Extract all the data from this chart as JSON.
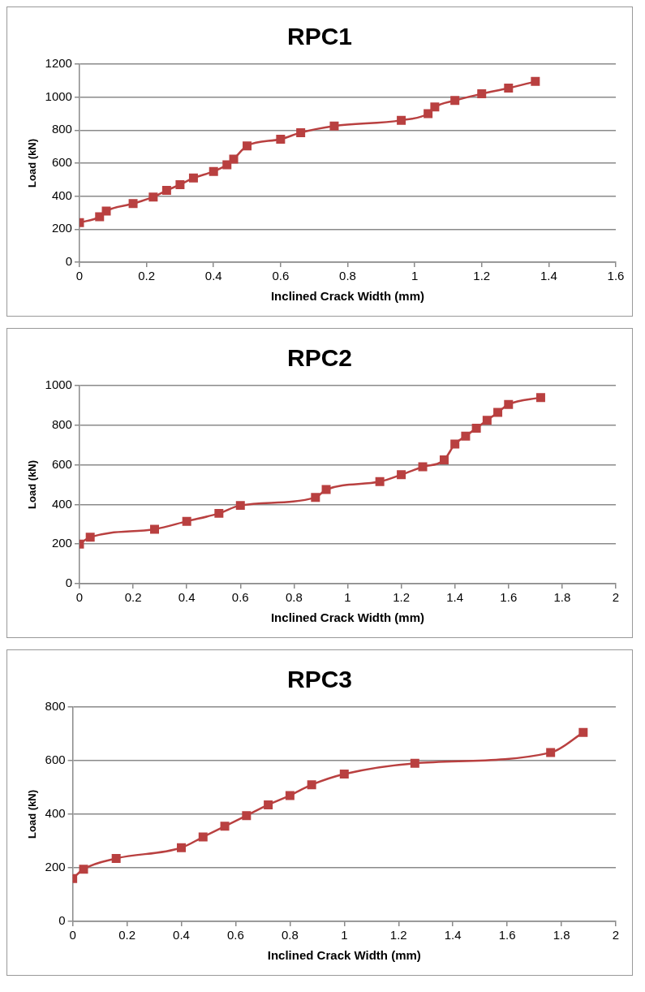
{
  "chart_data": [
    {
      "type": "line",
      "title": "RPC1",
      "xlabel": "Inclined Crack Width (mm)",
      "ylabel": "Load (kN)",
      "marker": "square",
      "grid": "y",
      "xlim": [
        0,
        1.6
      ],
      "xticks": [
        0,
        0.2,
        0.4,
        0.6,
        0.8,
        1,
        1.2,
        1.4,
        1.6
      ],
      "ylim": [
        0,
        1200
      ],
      "yticks": [
        0,
        200,
        400,
        600,
        800,
        1000,
        1200
      ],
      "series": [
        {
          "color": "#b94040",
          "x": [
            0,
            0.06,
            0.08,
            0.16,
            0.22,
            0.26,
            0.3,
            0.34,
            0.4,
            0.44,
            0.46,
            0.5,
            0.6,
            0.66,
            0.76,
            0.96,
            1.04,
            1.06,
            1.12,
            1.2,
            1.28,
            1.36
          ],
          "values": [
            240,
            275,
            310,
            355,
            395,
            435,
            470,
            510,
            550,
            590,
            625,
            705,
            745,
            785,
            825,
            860,
            900,
            940,
            980,
            1020,
            1055,
            1095
          ]
        }
      ]
    },
    {
      "type": "line",
      "title": "RPC2",
      "xlabel": "Inclined Crack Width (mm)",
      "ylabel": "Load (kN)",
      "marker": "square",
      "grid": "y",
      "xlim": [
        0,
        2
      ],
      "xticks": [
        0,
        0.2,
        0.4,
        0.6,
        0.8,
        1,
        1.2,
        1.4,
        1.6,
        1.8,
        2
      ],
      "ylim": [
        0,
        1000
      ],
      "yticks": [
        0,
        200,
        400,
        600,
        800,
        1000
      ],
      "series": [
        {
          "color": "#b94040",
          "x": [
            0,
            0.04,
            0.28,
            0.4,
            0.52,
            0.6,
            0.88,
            0.92,
            1.12,
            1.2,
            1.28,
            1.36,
            1.4,
            1.44,
            1.48,
            1.52,
            1.56,
            1.6,
            1.72
          ],
          "values": [
            200,
            235,
            275,
            315,
            355,
            395,
            435,
            475,
            515,
            550,
            590,
            625,
            705,
            745,
            785,
            825,
            865,
            905,
            940
          ]
        }
      ]
    },
    {
      "type": "line",
      "title": "RPC3",
      "xlabel": "Inclined Crack Width (mm)",
      "ylabel": "Load (kN)",
      "marker": "square",
      "grid": "y",
      "xlim": [
        0,
        2
      ],
      "xticks": [
        0,
        0.2,
        0.4,
        0.6,
        0.8,
        1,
        1.2,
        1.4,
        1.6,
        1.8,
        2
      ],
      "ylim": [
        0,
        800
      ],
      "yticks": [
        0,
        200,
        400,
        600,
        800
      ],
      "series": [
        {
          "color": "#b94040",
          "x": [
            0,
            0.04,
            0.16,
            0.4,
            0.48,
            0.56,
            0.64,
            0.72,
            0.8,
            0.88,
            1,
            1.26,
            1.76,
            1.88
          ],
          "values": [
            160,
            195,
            235,
            275,
            315,
            355,
            395,
            435,
            470,
            510,
            550,
            590,
            630,
            705
          ]
        }
      ]
    }
  ]
}
